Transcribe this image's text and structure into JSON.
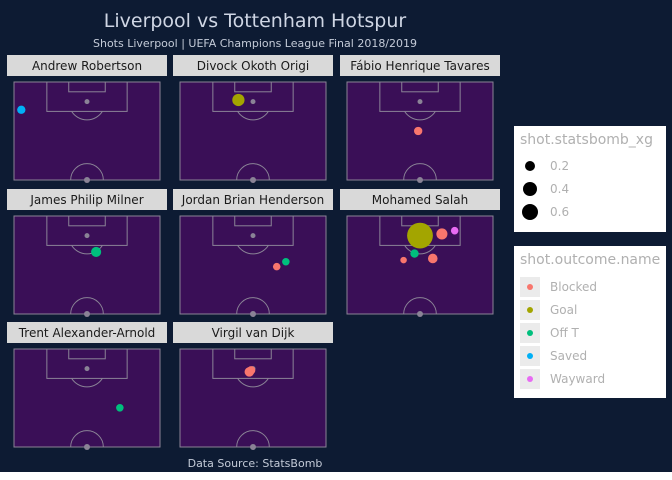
{
  "title": "Liverpool vs Tottenham Hotspur",
  "subtitle": "Shots Liverpool | UEFA Champions League Final 2018/2019",
  "caption": "Data Source: StatsBomb",
  "colors": {
    "background": "#0d1b33",
    "pitch_fill": "#3a0f57",
    "pitch_lines": "#8a8396",
    "strip_fill": "#d9d9d9",
    "strip_text": "#1a1a1a",
    "spot": "#8a8396"
  },
  "legend_size": {
    "title": "shot.statsbomb_xg",
    "items": [
      {
        "label": "0.2",
        "value": 0.2
      },
      {
        "label": "0.4",
        "value": 0.4
      },
      {
        "label": "0.6",
        "value": 0.6
      }
    ]
  },
  "legend_color": {
    "title": "shot.outcome.name",
    "items": [
      {
        "label": "Blocked",
        "color": "#f8766d"
      },
      {
        "label": "Goal",
        "color": "#a3a500"
      },
      {
        "label": "Off T",
        "color": "#00bf7d"
      },
      {
        "label": "Saved",
        "color": "#00b0f6"
      },
      {
        "label": "Wayward",
        "color": "#e76bf3"
      }
    ]
  },
  "chart_data": {
    "type": "scatter",
    "facet_by": "player",
    "x_range": [
      0,
      80
    ],
    "y_range": [
      60,
      120
    ],
    "size_variable": "shot.statsbomb_xg",
    "color_variable": "shot.outcome.name",
    "panels": [
      {
        "player": "Andrew Robertson",
        "shots": [
          {
            "x": 4,
            "y": 103,
            "xg": 0.03,
            "outcome": "Saved"
          }
        ]
      },
      {
        "player": "Divock Okoth Origi",
        "shots": [
          {
            "x": 32,
            "y": 109,
            "xg": 0.11,
            "outcome": "Goal"
          }
        ]
      },
      {
        "player": "Fábio Henrique Tavares",
        "shots": [
          {
            "x": 39,
            "y": 90,
            "xg": 0.03,
            "outcome": "Blocked"
          }
        ]
      },
      {
        "player": "James Philip Milner",
        "shots": [
          {
            "x": 45,
            "y": 98,
            "xg": 0.06,
            "outcome": "Off T"
          }
        ]
      },
      {
        "player": "Jordan Brian Henderson",
        "shots": [
          {
            "x": 53,
            "y": 89,
            "xg": 0.02,
            "outcome": "Blocked"
          },
          {
            "x": 58,
            "y": 92,
            "xg": 0.02,
            "outcome": "Off T"
          }
        ]
      },
      {
        "player": "Mohamed Salah",
        "shots": [
          {
            "x": 40,
            "y": 108,
            "xg": 0.76,
            "outcome": "Goal"
          },
          {
            "x": 52,
            "y": 109,
            "xg": 0.08,
            "outcome": "Blocked"
          },
          {
            "x": 59,
            "y": 111,
            "xg": 0.02,
            "outcome": "Wayward"
          },
          {
            "x": 37,
            "y": 97,
            "xg": 0.03,
            "outcome": "Off T"
          },
          {
            "x": 47,
            "y": 94,
            "xg": 0.05,
            "outcome": "Blocked"
          },
          {
            "x": 31,
            "y": 93,
            "xg": 0.01,
            "outcome": "Blocked"
          }
        ]
      },
      {
        "player": "Trent Alexander-Arnold",
        "shots": [
          {
            "x": 58,
            "y": 84,
            "xg": 0.02,
            "outcome": "Off T"
          }
        ]
      },
      {
        "player": "Virgil van Dijk",
        "shots": [
          {
            "x": 38,
            "y": 106,
            "xg": 0.05,
            "outcome": "Blocked"
          },
          {
            "x": 39,
            "y": 107,
            "xg": 0.03,
            "outcome": "Blocked"
          }
        ]
      }
    ]
  }
}
